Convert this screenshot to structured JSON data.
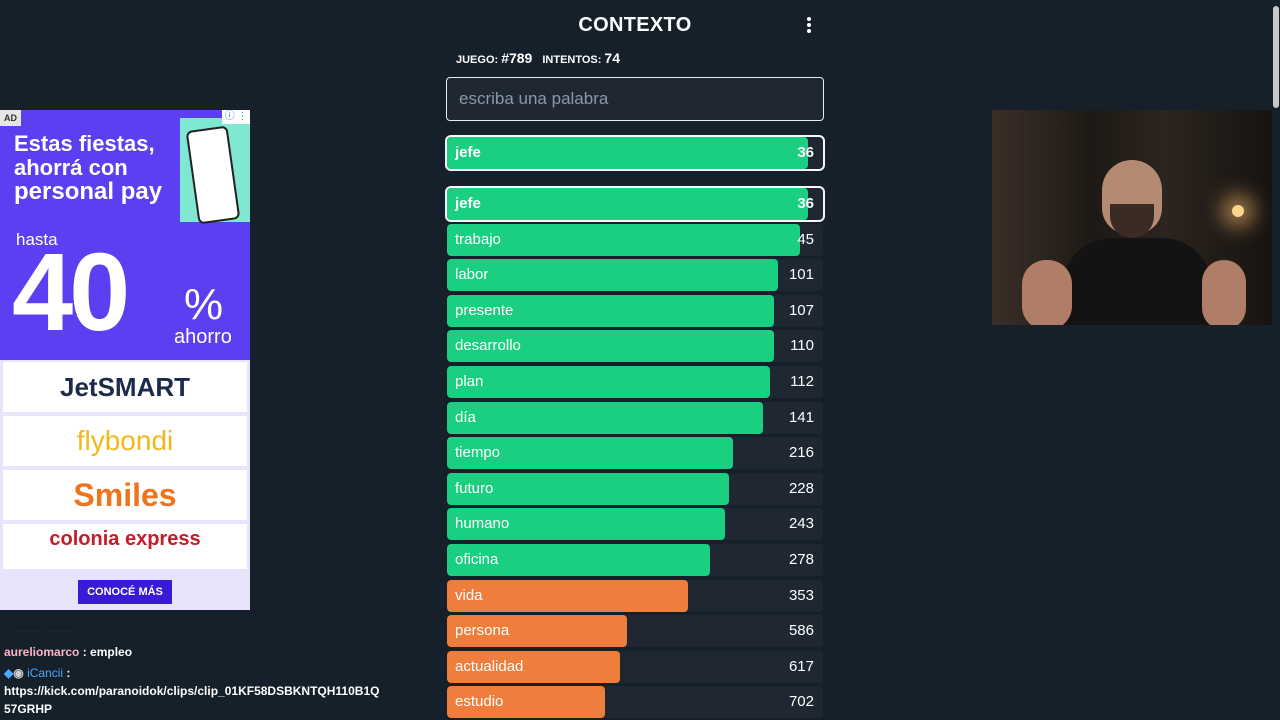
{
  "app": {
    "title": "CONTEXTO",
    "menu_icon": "three-dots-vertical-icon"
  },
  "stats": {
    "game_label": "JUEGO:",
    "game_value": "#789",
    "attempts_label": "INTENTOS:",
    "attempts_value": "74"
  },
  "input": {
    "placeholder": "escriba una palabra",
    "value": ""
  },
  "last_guess": {
    "word": "jefe",
    "score": "36"
  },
  "guesses": [
    {
      "word": "jefe",
      "score": "36",
      "color": "#1bcf80",
      "fill": 0.96
    },
    {
      "word": "trabajo",
      "score": "45",
      "color": "#1bcf80",
      "fill": 0.94
    },
    {
      "word": "labor",
      "score": "101",
      "color": "#1bcf80",
      "fill": 0.88
    },
    {
      "word": "presente",
      "score": "107",
      "color": "#1bcf80",
      "fill": 0.87
    },
    {
      "word": "desarrollo",
      "score": "110",
      "color": "#1bcf80",
      "fill": 0.87
    },
    {
      "word": "plan",
      "score": "112",
      "color": "#1bcf80",
      "fill": 0.86
    },
    {
      "word": "día",
      "score": "141",
      "color": "#1bcf80",
      "fill": 0.84
    },
    {
      "word": "tiempo",
      "score": "216",
      "color": "#1bcf80",
      "fill": 0.76
    },
    {
      "word": "futuro",
      "score": "228",
      "color": "#1bcf80",
      "fill": 0.75
    },
    {
      "word": "humano",
      "score": "243",
      "color": "#1bcf80",
      "fill": 0.74
    },
    {
      "word": "oficina",
      "score": "278",
      "color": "#1bcf80",
      "fill": 0.7
    },
    {
      "word": "vida",
      "score": "353",
      "color": "#ef7d3c",
      "fill": 0.64
    },
    {
      "word": "persona",
      "score": "586",
      "color": "#ef7d3c",
      "fill": 0.48
    },
    {
      "word": "actualidad",
      "score": "617",
      "color": "#ef7d3c",
      "fill": 0.46
    },
    {
      "word": "estudio",
      "score": "702",
      "color": "#ef7d3c",
      "fill": 0.42
    }
  ],
  "ad": {
    "badge": "AD",
    "headline_1": "Estas fiestas,",
    "headline_2": "ahorrá con",
    "headline_3": "personal pay",
    "hasta": "hasta",
    "big_number": "40",
    "percent": "%",
    "ahorro": "ahorro",
    "brands": [
      "JetSMART",
      "flybondi",
      "Smiles",
      "colonia express"
    ],
    "cta": "CONOCÉ MÁS"
  },
  "chat": [
    {
      "user": "aureliomarco",
      "message": "empleo"
    },
    {
      "user": "iCancii",
      "message": "https://kick.com/paranoidok/clips/clip_01KF58DSBKNTQH110B1Q"
    },
    {
      "user": "",
      "message": "57GRHP"
    }
  ],
  "colors": {
    "background": "#15202b",
    "green": "#1bcf80",
    "orange": "#ef7d3c",
    "row_bg": "#1e2732"
  }
}
